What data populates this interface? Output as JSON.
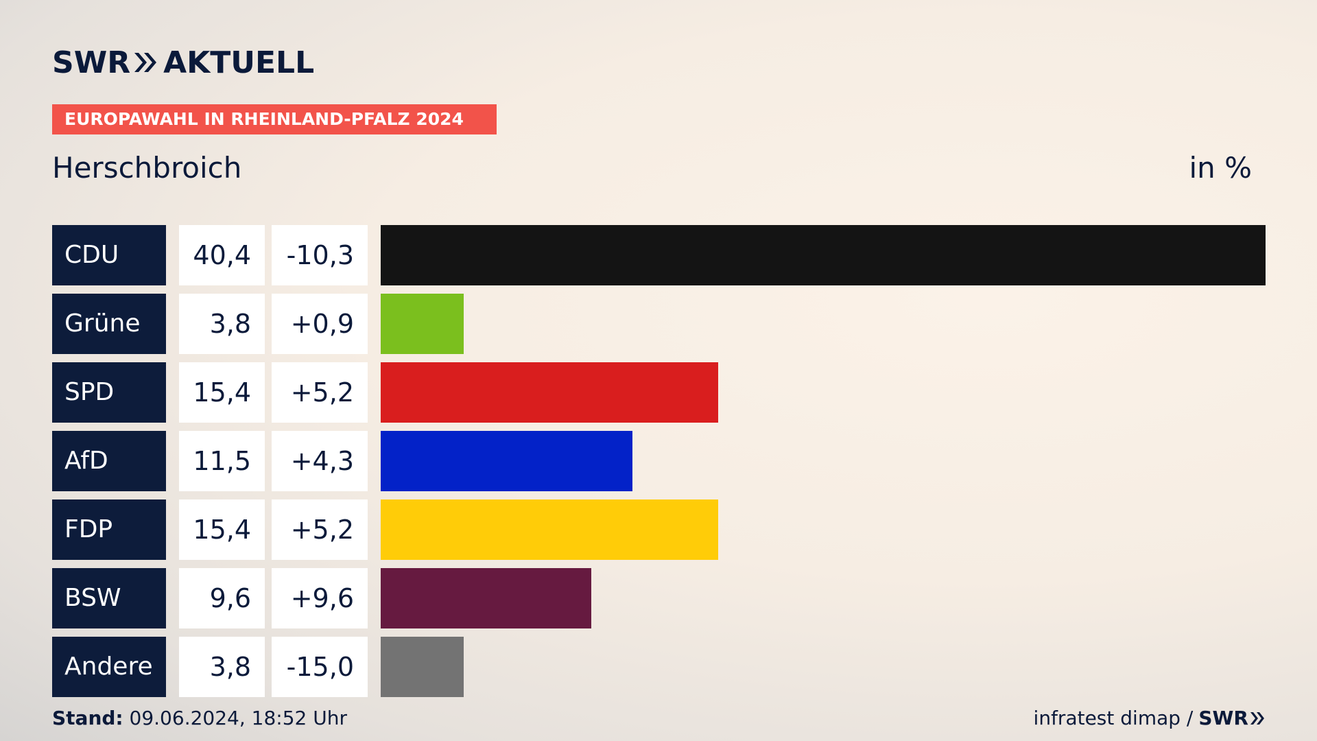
{
  "header": {
    "logo_swr": "SWR",
    "logo_aktuell": "AKTUELL",
    "badge": "EUROPAWAHL IN RHEINLAND-PFALZ 2024",
    "subtitle": "Herschbroich",
    "unit": "in %"
  },
  "footer": {
    "stand_label": "Stand:",
    "stand_value": "09.06.2024, 18:52 Uhr",
    "source": "infratest dimap /",
    "source_logo": "SWR"
  },
  "chart_data": {
    "type": "bar",
    "orientation": "horizontal",
    "title": "Herschbroich",
    "unit": "in %",
    "categories": [
      "CDU",
      "Grüne",
      "SPD",
      "AfD",
      "FDP",
      "BSW",
      "Andere"
    ],
    "values": [
      40.4,
      3.8,
      15.4,
      11.5,
      15.4,
      9.6,
      3.8
    ],
    "value_labels": [
      "40,4",
      "3,8",
      "15,4",
      "11,5",
      "15,4",
      "9,6",
      "3,8"
    ],
    "diff_labels": [
      "-10,3",
      "+0,9",
      "+5,2",
      "+4,3",
      "+5,2",
      "+9,6",
      "-15,0"
    ],
    "colors": [
      "#141414",
      "#7bbf1e",
      "#d91e1e",
      "#0322c8",
      "#ffcc08",
      "#661a40",
      "#737373"
    ],
    "xlim": [
      0,
      40.4
    ]
  }
}
